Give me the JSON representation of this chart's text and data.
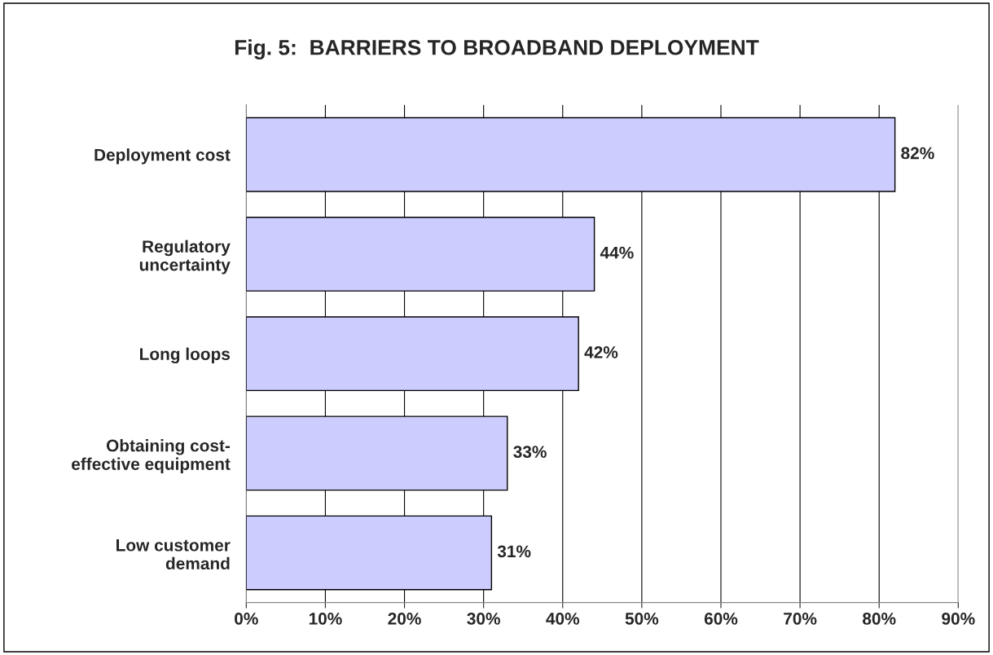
{
  "chart_data": {
    "type": "bar",
    "orientation": "horizontal",
    "title": "Fig. 5:  BARRIERS TO BROADBAND DEPLOYMENT",
    "categories": [
      "Deployment cost",
      "Regulatory\nuncertainty",
      "Long loops",
      "Obtaining cost-\neffective equipment",
      "Low customer\ndemand"
    ],
    "values": [
      82,
      44,
      42,
      33,
      31
    ],
    "value_labels": [
      "82%",
      "44%",
      "42%",
      "33%",
      "31%"
    ],
    "color": "#ccccff",
    "xlim": [
      0,
      90
    ],
    "xticks": [
      {
        "value": 0,
        "label": "0%"
      },
      {
        "value": 10,
        "label": "10%"
      },
      {
        "value": 20,
        "label": "20%"
      },
      {
        "value": 30,
        "label": "30%"
      },
      {
        "value": 40,
        "label": "40%"
      },
      {
        "value": 50,
        "label": "50%"
      },
      {
        "value": 60,
        "label": "60%"
      },
      {
        "value": 70,
        "label": "70%"
      },
      {
        "value": 80,
        "label": "80%"
      },
      {
        "value": 90,
        "label": "90%"
      }
    ],
    "grid": "x",
    "legend": false
  }
}
